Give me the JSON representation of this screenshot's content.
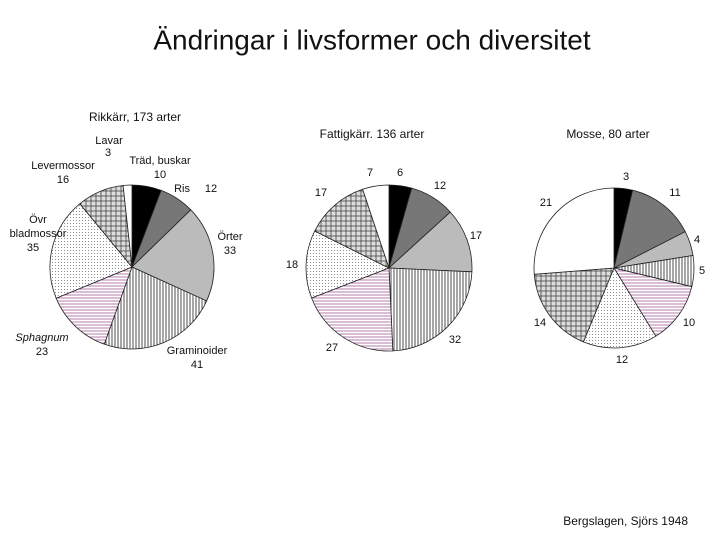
{
  "title": "Ändringar i livsformer och diversitet",
  "source": "Bergslagen, Sjörs 1948",
  "chart_data": [
    {
      "type": "pie",
      "title": "Rikkärr, 173 arter",
      "categories": [
        "Träd, buskar",
        "Ris",
        "Örter",
        "Graminoider",
        "Sphagnum",
        "Övr bladmossor",
        "Levermossor",
        "Lavar"
      ],
      "values": [
        10,
        12,
        33,
        41,
        23,
        35,
        16,
        3
      ]
    },
    {
      "type": "pie",
      "title": "Fattigkärr. 136 arter",
      "values": [
        6,
        12,
        17,
        32,
        27,
        18,
        17,
        7
      ]
    },
    {
      "type": "pie",
      "title": "Mosse, 80 arter",
      "values": [
        3,
        11,
        4,
        5,
        10,
        12,
        14,
        21
      ]
    }
  ]
}
